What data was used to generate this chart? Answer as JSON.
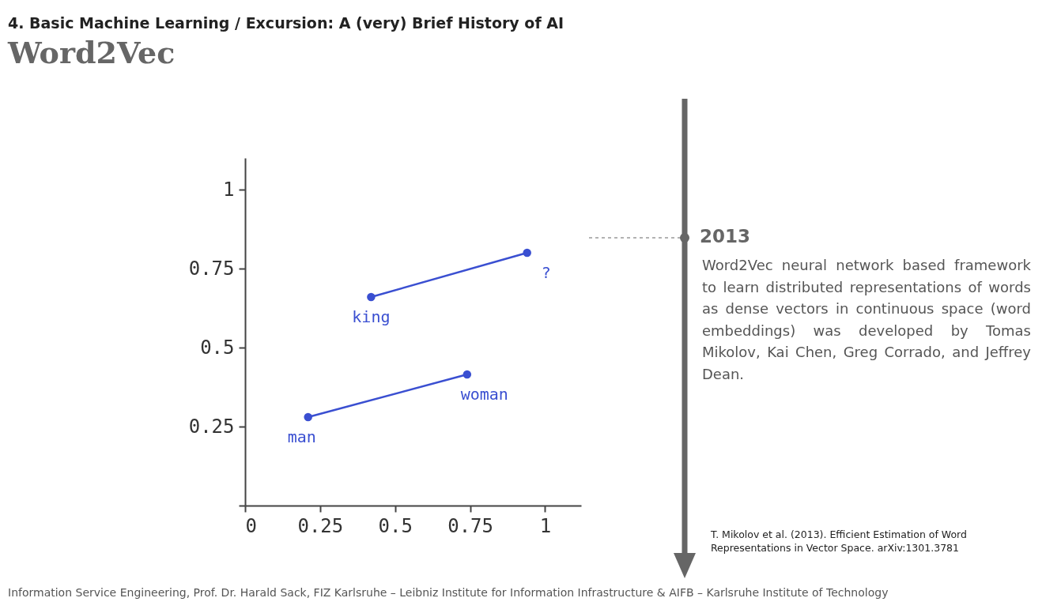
{
  "chart_data": {
    "type": "scatter",
    "title": "Word2Vec",
    "subtitle": "4. Basic Machine Learning / Excursion: A (very) Brief History of AI",
    "xlim": [
      0,
      1.12
    ],
    "ylim": [
      0,
      1.1
    ],
    "xticks": [
      0,
      0.25,
      0.5,
      0.75,
      1
    ],
    "yticks": [
      {
        "value": 0,
        "label": null
      },
      0.25,
      0.5,
      0.75,
      1
    ],
    "series": [
      {
        "marker": "circle",
        "color": "#3a4fd1",
        "x": [
          0.21,
          0.74,
          0.42,
          0.94
        ],
        "values": [
          0.28,
          0.415,
          0.66,
          0.8
        ]
      },
      {
        "type": "line",
        "marker": "none",
        "color": "#3a4fd1",
        "x": [
          0.21,
          0.74
        ],
        "values": [
          0.28,
          0.415
        ]
      },
      {
        "type": "line",
        "marker": "none",
        "color": "#3a4fd1",
        "x": [
          0.42,
          0.94
        ],
        "values": [
          0.66,
          0.8
        ]
      }
    ],
    "annotations": [
      {
        "text": "man",
        "x": 0.21,
        "y": 0.28
      },
      {
        "text": "woman",
        "x": 0.74,
        "y": 0.415
      },
      {
        "text": "king",
        "x": 0.42,
        "y": 0.66
      },
      {
        "text": "?",
        "x": 0.94,
        "y": 0.8
      },
      "2013",
      "Word2Vec neural network based framework to learn distributed representations of words as dense vectors in continuous space (word embeddings) was developed by Tomas Mikolov, Kai Chen, Greg Corrado, and Jeffrey Dean.",
      "T. Mikolov et al. (2013). Efficient Estimation of Word Representations in Vector Space. arXiv:1301.3781",
      "Information Service Engineering, Prof. Dr. Harald Sack, FIZ Karlsruhe – Leibniz Institute for Information Infrastructure & AIFB – Karlsruhe Institute of Technology"
    ]
  }
}
